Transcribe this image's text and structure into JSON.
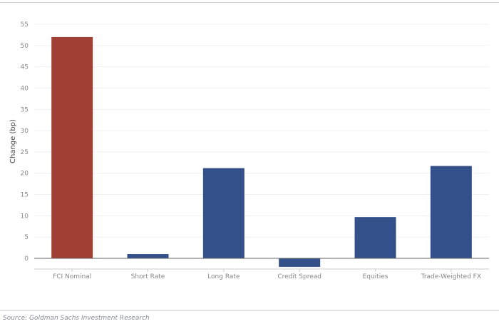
{
  "chart_data": {
    "type": "bar",
    "categories": [
      "FCI Nominal",
      "Short Rate",
      "Long Rate",
      "Credit Spread",
      "Equities",
      "Trade-Weighted FX"
    ],
    "values": [
      52,
      1,
      21.2,
      -2,
      9.7,
      21.7
    ],
    "colors": [
      "#a03f34",
      "#33508a",
      "#33508a",
      "#33508a",
      "#33508a",
      "#33508a"
    ],
    "xlabel": "",
    "ylabel": "Change (bp)",
    "ylim": [
      -2,
      55
    ],
    "yticks": [
      0,
      5,
      10,
      15,
      20,
      25,
      30,
      35,
      40,
      45,
      50,
      55
    ],
    "grid": true,
    "legend": "none"
  },
  "source": "Source: Goldman Sachs Investment Research"
}
